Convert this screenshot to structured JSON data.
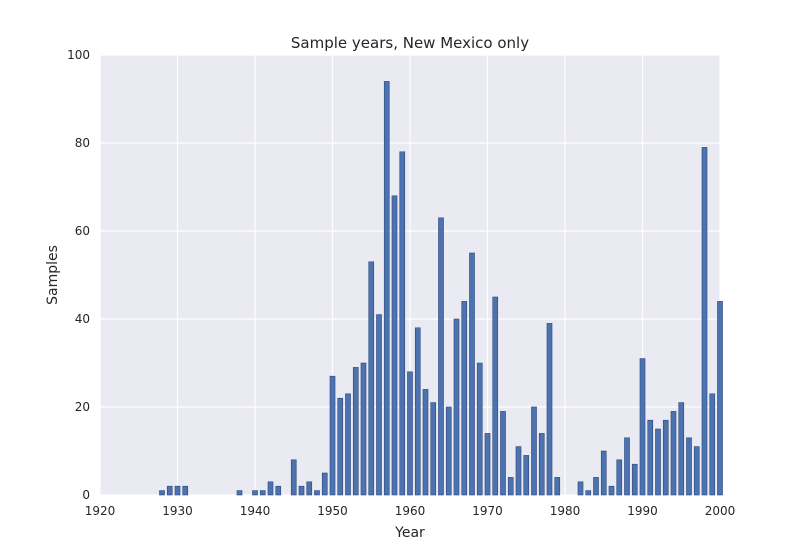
{
  "chart_data": {
    "type": "bar",
    "title": "Sample years, New Mexico only",
    "xlabel": "Year",
    "ylabel": "Samples",
    "xlim": [
      1920,
      2000
    ],
    "ylim": [
      0,
      100
    ],
    "xticks": [
      "1920",
      "1930",
      "1940",
      "1950",
      "1960",
      "1970",
      "1980",
      "1990",
      "2000"
    ],
    "yticks": [
      "0",
      "20",
      "40",
      "60",
      "80",
      "100"
    ],
    "grid": true,
    "colors": {
      "bar": "#4c72b0",
      "plot_bg": "#eaeaf2",
      "grid": "#ffffff"
    },
    "x": [
      1928,
      1929,
      1930,
      1931,
      1938,
      1940,
      1941,
      1942,
      1943,
      1945,
      1946,
      1947,
      1948,
      1949,
      1950,
      1951,
      1952,
      1953,
      1954,
      1955,
      1956,
      1957,
      1958,
      1959,
      1960,
      1961,
      1962,
      1963,
      1964,
      1965,
      1966,
      1967,
      1968,
      1969,
      1970,
      1971,
      1972,
      1973,
      1974,
      1975,
      1976,
      1977,
      1978,
      1979,
      1982,
      1983,
      1984,
      1985,
      1986,
      1987,
      1988,
      1989,
      1990,
      1991,
      1992,
      1993,
      1994,
      1995,
      1996,
      1997,
      1998,
      1999,
      2000
    ],
    "values": [
      1,
      2,
      2,
      2,
      1,
      1,
      1,
      3,
      2,
      8,
      2,
      3,
      1,
      5,
      27,
      22,
      23,
      29,
      30,
      53,
      41,
      94,
      68,
      78,
      28,
      38,
      24,
      21,
      63,
      20,
      40,
      44,
      55,
      30,
      14,
      45,
      19,
      4,
      11,
      9,
      20,
      14,
      39,
      4,
      3,
      1,
      4,
      10,
      2,
      8,
      13,
      7,
      31,
      17,
      15,
      17,
      19,
      21,
      13,
      11,
      79,
      23,
      44
    ]
  }
}
